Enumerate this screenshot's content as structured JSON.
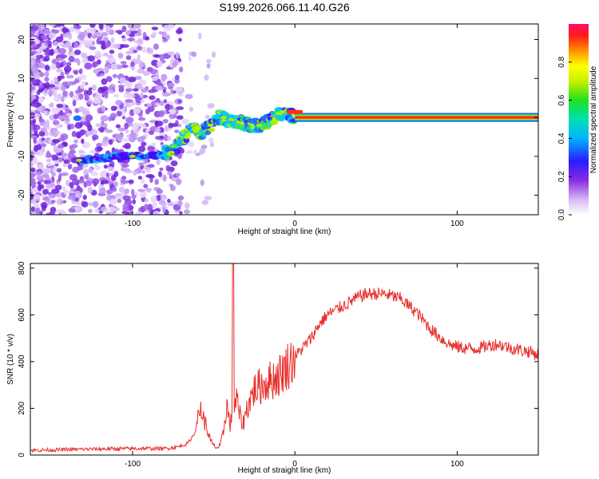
{
  "chart_data": [
    {
      "type": "heatmap",
      "title": "S199.2026.066.11.40.G26",
      "xlabel": "Height of straight line (km)",
      "ylabel": "Frequency (Hz)",
      "xlim": [
        -163,
        150
      ],
      "ylim": [
        -25,
        24
      ],
      "xticks": [
        -100,
        0,
        100
      ],
      "xtick_labels": [
        "-100",
        "0",
        "100"
      ],
      "yticks": [
        -20,
        -10,
        0,
        10,
        20
      ],
      "ytick_labels": [
        "-20",
        "-10",
        "0",
        "10",
        "20"
      ],
      "colorbar": {
        "label": "Normalized spectral amplitude",
        "range": [
          0,
          1
        ],
        "ticks": [
          0.0,
          0.2,
          0.4,
          0.6,
          0.8
        ],
        "tick_labels": [
          "0.0",
          "0.2",
          "0.4",
          "0.6",
          "0.8"
        ]
      },
      "ridge": {
        "x": [
          -133,
          -120,
          -110,
          -100,
          -90,
          -82,
          -76,
          -70,
          -64,
          -58,
          -52,
          -46,
          -40,
          -34,
          -28,
          -22,
          -16,
          -10,
          -5,
          0,
          150
        ],
        "y": [
          -11,
          -10.5,
          -10,
          -10,
          -10,
          -9.5,
          -9,
          -6,
          -3,
          -4,
          -2,
          0,
          -1,
          -1,
          -2,
          -2,
          -1,
          1,
          1,
          0,
          0
        ]
      }
    },
    {
      "type": "line",
      "xlabel": "Height of straight line (km)",
      "ylabel": "SNR (10 * v/v)",
      "xlim": [
        -163,
        150
      ],
      "ylim": [
        0,
        820
      ],
      "xticks": [
        -100,
        0,
        100
      ],
      "xtick_labels": [
        "-100",
        "0",
        "100"
      ],
      "yticks": [
        0,
        200,
        400,
        600,
        800
      ],
      "ytick_labels": [
        "0",
        "200",
        "400",
        "600",
        "800"
      ],
      "line_color": "#e8302c",
      "series": [
        {
          "name": "SNR",
          "x": [
            -163,
            -150,
            -130,
            -110,
            -90,
            -80,
            -72,
            -66,
            -62,
            -58,
            -56,
            -54,
            -52,
            -50,
            -48,
            -46,
            -44,
            -42,
            -40,
            -38,
            -36,
            -34,
            -32,
            -30,
            -28,
            -25,
            -20,
            -15,
            -10,
            -5,
            0,
            5,
            10,
            15,
            20,
            25,
            30,
            35,
            40,
            45,
            50,
            55,
            60,
            65,
            70,
            75,
            80,
            85,
            90,
            95,
            100,
            105,
            110,
            115,
            120,
            125,
            130,
            135,
            140,
            145,
            150
          ],
          "y": [
            20,
            22,
            25,
            27,
            28,
            28,
            35,
            50,
            90,
            200,
            150,
            110,
            60,
            40,
            30,
            40,
            100,
            220,
            130,
            170,
            240,
            170,
            130,
            190,
            230,
            280,
            300,
            320,
            340,
            380,
            420,
            460,
            500,
            560,
            600,
            620,
            640,
            660,
            680,
            690,
            690,
            690,
            680,
            670,
            640,
            610,
            570,
            530,
            500,
            475,
            462,
            458,
            455,
            460,
            470,
            475,
            465,
            455,
            448,
            442,
            428
          ]
        }
      ]
    }
  ]
}
